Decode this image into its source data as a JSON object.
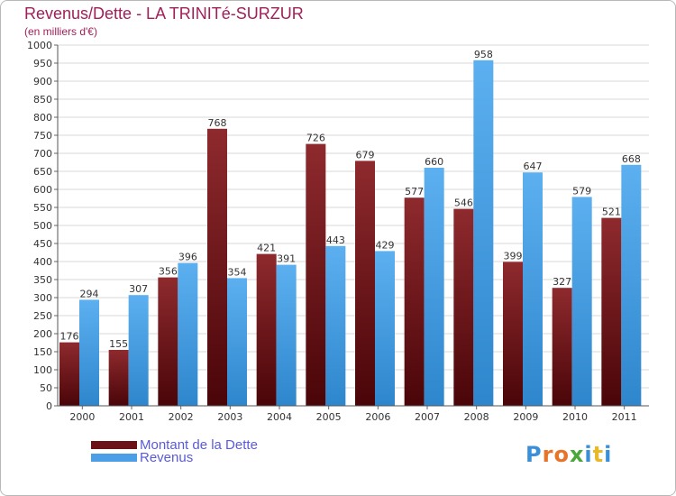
{
  "header": {
    "title": "Revenus/Dette - LA TRINITé-SURZUR",
    "subtitle": "(en milliers d'€)"
  },
  "legend": {
    "items": [
      {
        "label": "Montant de la Dette",
        "color": "#6b1218"
      },
      {
        "label": "Revenus",
        "color": "#4a9fe6"
      }
    ]
  },
  "logo": {
    "text": "Proxiti",
    "colors": [
      "#3a8fd8",
      "#e8732a",
      "#e8732a",
      "#4aa83a",
      "#3a8fd8",
      "#e8b82a",
      "#3a8fd8"
    ]
  },
  "chart_data": {
    "type": "bar",
    "title": "Revenus/Dette - LA TRINITé-SURZUR",
    "ylabel": "(en milliers d'€)",
    "categories": [
      "2000",
      "2001",
      "2002",
      "2003",
      "2004",
      "2005",
      "2006",
      "2007",
      "2008",
      "2009",
      "2010",
      "2011"
    ],
    "series": [
      {
        "name": "Montant de la Dette",
        "color": "#6b1218",
        "values": [
          176,
          155,
          356,
          768,
          421,
          726,
          679,
          577,
          546,
          399,
          327,
          521
        ]
      },
      {
        "name": "Revenus",
        "color": "#4a9fe6",
        "values": [
          294,
          307,
          396,
          354,
          391,
          443,
          429,
          660,
          958,
          647,
          579,
          668
        ]
      }
    ],
    "ylim": [
      0,
      1000
    ],
    "ytick_step": 50,
    "grid": true,
    "legend_position": "bottom-left"
  }
}
